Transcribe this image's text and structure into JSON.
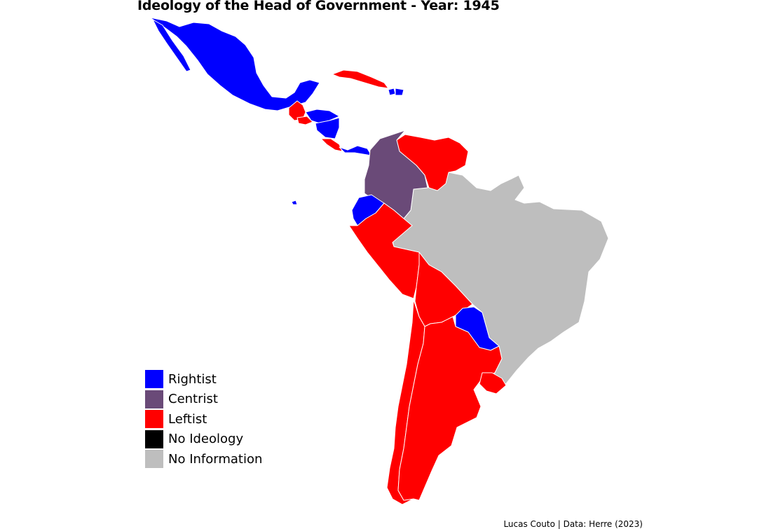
{
  "title": "Ideology of the Head of Government - Year: 1945",
  "caption": "Lucas Couto | Data: Herre (2023)",
  "colors": {
    "Rightist": "#0000ff",
    "Centrist": "#6a4a78",
    "Leftist": "#ff0000",
    "No Ideology": "#000000",
    "No Information": "#bebebe"
  },
  "legend": [
    {
      "label": "Rightist",
      "color": "#0000ff"
    },
    {
      "label": "Centrist",
      "color": "#6a4a78"
    },
    {
      "label": "Leftist",
      "color": "#ff0000"
    },
    {
      "label": "No Ideology",
      "color": "#000000"
    },
    {
      "label": "No Information",
      "color": "#bebebe"
    }
  ],
  "countries": [
    {
      "name": "Mexico",
      "category": "Rightist"
    },
    {
      "name": "Guatemala",
      "category": "Leftist"
    },
    {
      "name": "El Salvador",
      "category": "Leftist"
    },
    {
      "name": "Honduras",
      "category": "Rightist"
    },
    {
      "name": "Nicaragua",
      "category": "Rightist"
    },
    {
      "name": "Costa Rica",
      "category": "Leftist"
    },
    {
      "name": "Panama",
      "category": "Rightist"
    },
    {
      "name": "Cuba",
      "category": "Leftist"
    },
    {
      "name": "Haiti",
      "category": "Rightist"
    },
    {
      "name": "Dominican Republic",
      "category": "Rightist"
    },
    {
      "name": "Colombia",
      "category": "Centrist"
    },
    {
      "name": "Venezuela",
      "category": "Leftist"
    },
    {
      "name": "Ecuador",
      "category": "Rightist"
    },
    {
      "name": "Galapagos",
      "category": "Rightist"
    },
    {
      "name": "Peru",
      "category": "Leftist"
    },
    {
      "name": "Bolivia",
      "category": "Leftist"
    },
    {
      "name": "Brazil",
      "category": "No Information"
    },
    {
      "name": "Paraguay",
      "category": "Rightist"
    },
    {
      "name": "Chile",
      "category": "Leftist"
    },
    {
      "name": "Argentina",
      "category": "Leftist"
    },
    {
      "name": "Uruguay",
      "category": "Leftist"
    }
  ]
}
